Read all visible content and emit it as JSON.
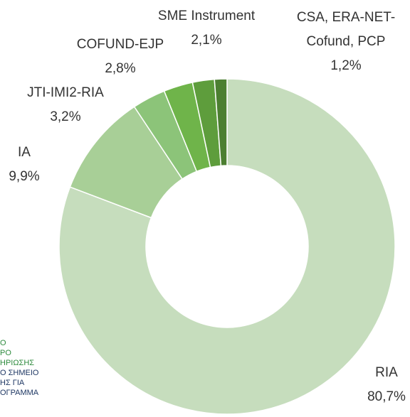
{
  "chart_data": {
    "type": "donut",
    "categories": [
      "RIA",
      "IA",
      "JTI-IMI2-RIA",
      "COFUND-EJP",
      "SME Instrument",
      "CSA, ERA-NET-Cofund, PCP"
    ],
    "values": [
      80.7,
      9.9,
      3.2,
      2.8,
      2.1,
      1.2
    ],
    "value_labels": [
      "80,7%",
      "9,9%",
      "3,2%",
      "2,8%",
      "2,1%",
      "1,2%"
    ],
    "colors": [
      "#c6ddbd",
      "#a8cf97",
      "#8cc479",
      "#6fb44a",
      "#5e9d3c",
      "#4c7f31"
    ]
  },
  "side_text": {
    "lines": [
      "Ο",
      "ΡΟ",
      "ΗΡΙΩΣΗΣ",
      "Ο ΣΗΜΕΙΟ",
      "ΗΣ ΓΙΑ",
      "ΟΓΡΑΜΜΑ"
    ]
  }
}
